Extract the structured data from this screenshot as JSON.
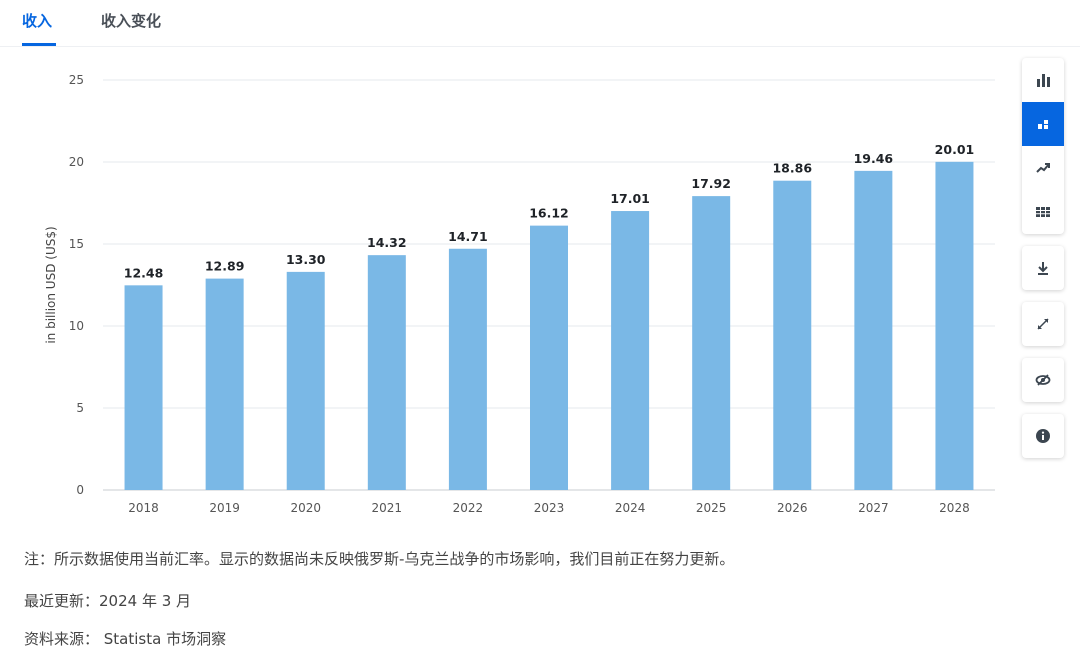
{
  "tabs": [
    {
      "label": "收入",
      "active": true
    },
    {
      "label": "收入变化",
      "active": false
    }
  ],
  "toolbar": {
    "groups": [
      [
        "bar-chart-icon",
        "stacked-bar-icon",
        "trend-icon",
        "table-icon"
      ],
      [
        "download-icon"
      ],
      [
        "fullscreen-icon"
      ],
      [
        "hide-icon"
      ],
      [
        "info-icon"
      ]
    ],
    "active": "stacked-bar-icon"
  },
  "chart_data": {
    "type": "bar",
    "categories": [
      "2018",
      "2019",
      "2020",
      "2021",
      "2022",
      "2023",
      "2024",
      "2025",
      "2026",
      "2027",
      "2028"
    ],
    "values": [
      12.48,
      12.89,
      13.3,
      14.32,
      14.71,
      16.12,
      17.01,
      17.92,
      18.86,
      19.46,
      20.01
    ],
    "value_labels": [
      "12.48",
      "12.89",
      "13.30",
      "14.32",
      "14.71",
      "16.12",
      "17.01",
      "17.92",
      "18.86",
      "19.46",
      "20.01"
    ],
    "ylabel": "in billion USD (US$)",
    "ylim": [
      0,
      25
    ],
    "yticks": [
      0,
      5,
      10,
      15,
      20,
      25
    ],
    "grid": true,
    "bar_color": "#7ab8e6"
  },
  "notes": {
    "note": "注：所示数据使用当前汇率。显示的数据尚未反映俄罗斯-乌克兰战争的市场影响，我们目前正在努力更新。",
    "updated": "最近更新：2024 年 3 月",
    "source": "资料来源： Statista 市场洞察"
  }
}
